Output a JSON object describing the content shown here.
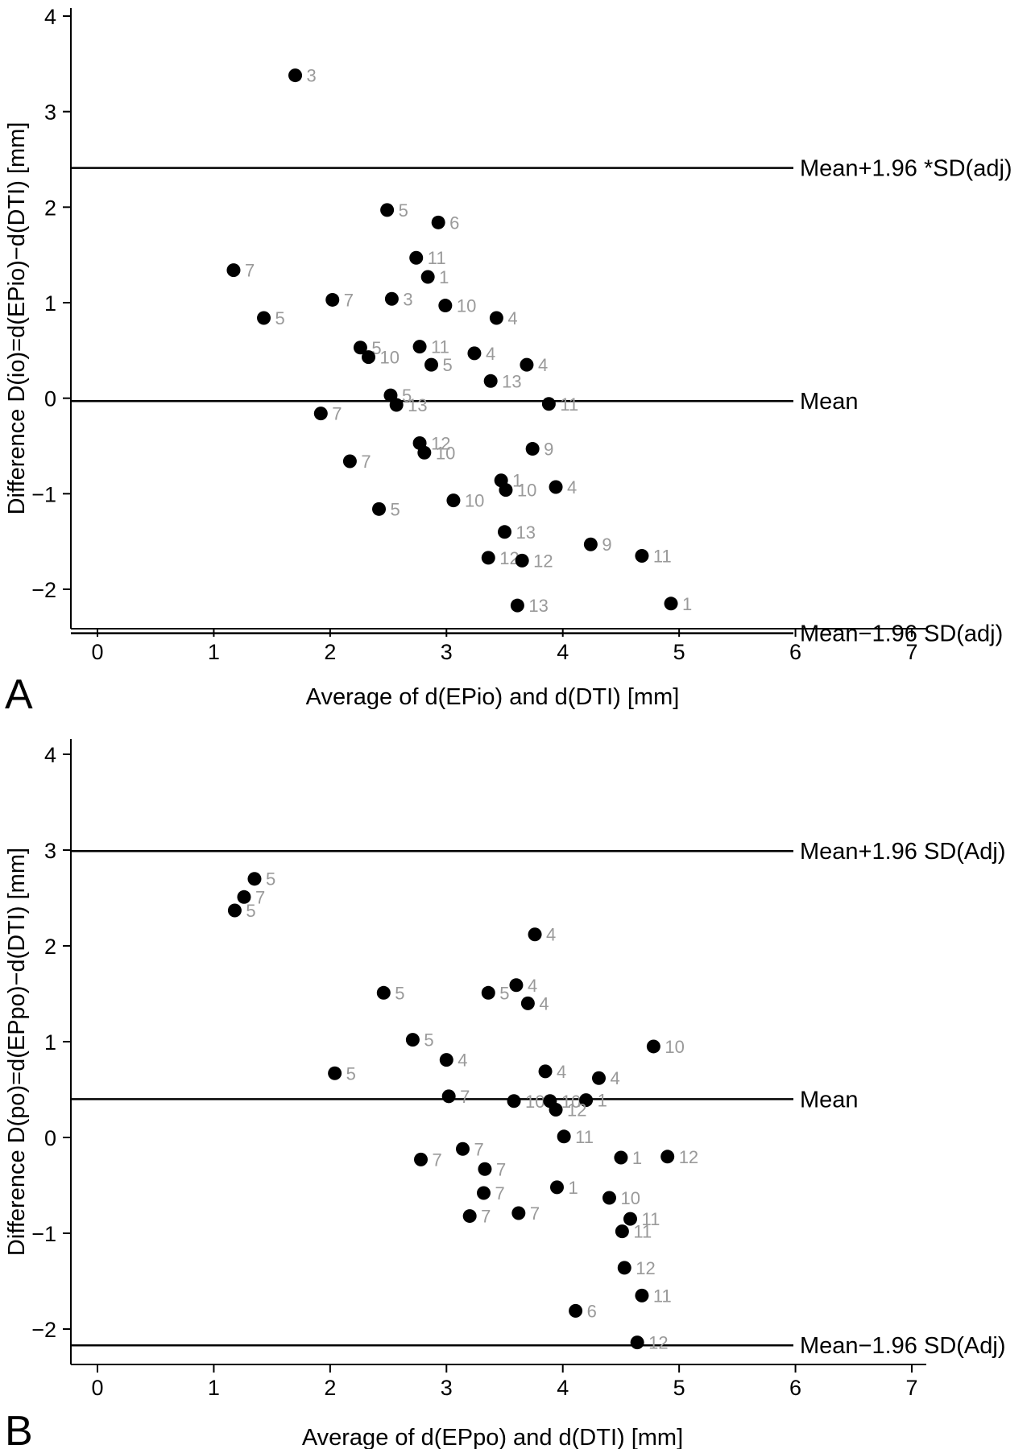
{
  "colors": {
    "points": "#000000",
    "point_labels": "#9a9a9a",
    "lines": "#000000"
  },
  "chart_data": [
    {
      "type": "scatter",
      "panel_label": "A",
      "title": "",
      "xlabel": "Average of d(EPio) and d(DTI) [mm]",
      "ylabel": "Difference D(io)=d(EPio)−d(DTI) [mm]",
      "xlim": [
        -0.2,
        7.1
      ],
      "ylim": [
        -2.65,
        4.15
      ],
      "xticks": [
        0,
        1,
        2,
        3,
        4,
        5,
        6,
        7
      ],
      "yticks": [
        -2,
        -1,
        0,
        1,
        2,
        3,
        4
      ],
      "grid": false,
      "reference_lines": [
        {
          "y": 2.41,
          "label": "Mean+1.96 *SD(adj)"
        },
        {
          "y": -0.03,
          "label": "Mean"
        },
        {
          "y": -2.46,
          "label": "Mean−1.96 SD(adj)"
        }
      ],
      "points": [
        {
          "x": 1.7,
          "y": 3.38,
          "label": "3"
        },
        {
          "x": 2.49,
          "y": 1.97,
          "label": "5"
        },
        {
          "x": 2.93,
          "y": 1.84,
          "label": "6"
        },
        {
          "x": 2.74,
          "y": 1.47,
          "label": "11"
        },
        {
          "x": 1.17,
          "y": 1.34,
          "label": "7"
        },
        {
          "x": 2.84,
          "y": 1.27,
          "label": "1"
        },
        {
          "x": 2.02,
          "y": 1.03,
          "label": "7"
        },
        {
          "x": 2.53,
          "y": 1.04,
          "label": "3"
        },
        {
          "x": 2.99,
          "y": 0.97,
          "label": "10"
        },
        {
          "x": 1.43,
          "y": 0.84,
          "label": "5"
        },
        {
          "x": 3.43,
          "y": 0.84,
          "label": "4"
        },
        {
          "x": 2.26,
          "y": 0.53,
          "label": "5"
        },
        {
          "x": 2.33,
          "y": 0.43,
          "label": "10"
        },
        {
          "x": 2.77,
          "y": 0.54,
          "label": "11"
        },
        {
          "x": 3.24,
          "y": 0.47,
          "label": "4"
        },
        {
          "x": 2.87,
          "y": 0.35,
          "label": "5"
        },
        {
          "x": 3.69,
          "y": 0.35,
          "label": "4"
        },
        {
          "x": 3.38,
          "y": 0.18,
          "label": "13"
        },
        {
          "x": 2.52,
          "y": 0.03,
          "label": "5"
        },
        {
          "x": 2.57,
          "y": -0.07,
          "label": "13"
        },
        {
          "x": 3.88,
          "y": -0.06,
          "label": "11"
        },
        {
          "x": 1.92,
          "y": -0.16,
          "label": "7"
        },
        {
          "x": 2.77,
          "y": -0.47,
          "label": "12"
        },
        {
          "x": 2.81,
          "y": -0.57,
          "label": "10"
        },
        {
          "x": 3.74,
          "y": -0.53,
          "label": "9"
        },
        {
          "x": 2.17,
          "y": -0.66,
          "label": "7"
        },
        {
          "x": 3.47,
          "y": -0.86,
          "label": "1"
        },
        {
          "x": 3.51,
          "y": -0.96,
          "label": "10"
        },
        {
          "x": 3.94,
          "y": -0.93,
          "label": "4"
        },
        {
          "x": 3.06,
          "y": -1.07,
          "label": "10"
        },
        {
          "x": 2.42,
          "y": -1.16,
          "label": "5"
        },
        {
          "x": 3.5,
          "y": -1.4,
          "label": "13"
        },
        {
          "x": 4.24,
          "y": -1.53,
          "label": "9"
        },
        {
          "x": 4.68,
          "y": -1.65,
          "label": "11"
        },
        {
          "x": 3.36,
          "y": -1.67,
          "label": "12"
        },
        {
          "x": 3.65,
          "y": -1.7,
          "label": "12"
        },
        {
          "x": 3.61,
          "y": -2.17,
          "label": "13"
        },
        {
          "x": 4.93,
          "y": -2.15,
          "label": "1"
        }
      ]
    },
    {
      "type": "scatter",
      "panel_label": "B",
      "title": "",
      "xlabel": "Average of d(EPpo) and d(DTI) [mm]",
      "ylabel": "Difference D(po)=d(EPpo)−d(DTI) [mm]",
      "xlim": [
        -0.2,
        7.1
      ],
      "ylim": [
        -2.37,
        4.15
      ],
      "xticks": [
        0,
        1,
        2,
        3,
        4,
        5,
        6,
        7
      ],
      "yticks": [
        -2,
        -1,
        0,
        1,
        2,
        3,
        4
      ],
      "grid": false,
      "reference_lines": [
        {
          "y": 2.99,
          "label": "Mean+1.96 SD(Adj)"
        },
        {
          "y": 0.4,
          "label": "Mean"
        },
        {
          "y": -2.17,
          "label": "Mean−1.96 SD(Adj)"
        }
      ],
      "points": [
        {
          "x": 1.35,
          "y": 2.7,
          "label": "5"
        },
        {
          "x": 1.26,
          "y": 2.51,
          "label": "7"
        },
        {
          "x": 1.18,
          "y": 2.37,
          "label": "5"
        },
        {
          "x": 3.76,
          "y": 2.12,
          "label": "4"
        },
        {
          "x": 3.6,
          "y": 1.59,
          "label": "4"
        },
        {
          "x": 2.46,
          "y": 1.51,
          "label": "5"
        },
        {
          "x": 3.36,
          "y": 1.51,
          "label": "5"
        },
        {
          "x": 3.7,
          "y": 1.4,
          "label": "4"
        },
        {
          "x": 2.71,
          "y": 1.02,
          "label": "5"
        },
        {
          "x": 4.78,
          "y": 0.95,
          "label": "10"
        },
        {
          "x": 3.0,
          "y": 0.81,
          "label": "4"
        },
        {
          "x": 2.04,
          "y": 0.67,
          "label": "5"
        },
        {
          "x": 3.85,
          "y": 0.69,
          "label": "4"
        },
        {
          "x": 4.31,
          "y": 0.62,
          "label": "4"
        },
        {
          "x": 3.02,
          "y": 0.43,
          "label": "7"
        },
        {
          "x": 3.58,
          "y": 0.38,
          "label": "10"
        },
        {
          "x": 3.89,
          "y": 0.38,
          "label": "10"
        },
        {
          "x": 4.2,
          "y": 0.39,
          "label": "1"
        },
        {
          "x": 3.94,
          "y": 0.29,
          "label": "12"
        },
        {
          "x": 4.01,
          "y": 0.01,
          "label": "11"
        },
        {
          "x": 3.14,
          "y": -0.12,
          "label": "7"
        },
        {
          "x": 2.78,
          "y": -0.23,
          "label": "7"
        },
        {
          "x": 4.5,
          "y": -0.21,
          "label": "1"
        },
        {
          "x": 4.9,
          "y": -0.2,
          "label": "12"
        },
        {
          "x": 3.33,
          "y": -0.33,
          "label": "7"
        },
        {
          "x": 3.95,
          "y": -0.52,
          "label": "1"
        },
        {
          "x": 3.32,
          "y": -0.58,
          "label": "7"
        },
        {
          "x": 4.4,
          "y": -0.63,
          "label": "10"
        },
        {
          "x": 3.2,
          "y": -0.82,
          "label": "7"
        },
        {
          "x": 3.62,
          "y": -0.79,
          "label": "7"
        },
        {
          "x": 4.58,
          "y": -0.85,
          "label": "11"
        },
        {
          "x": 4.51,
          "y": -0.98,
          "label": "11"
        },
        {
          "x": 4.53,
          "y": -1.36,
          "label": "12"
        },
        {
          "x": 4.68,
          "y": -1.65,
          "label": "11"
        },
        {
          "x": 4.11,
          "y": -1.81,
          "label": "6"
        },
        {
          "x": 4.64,
          "y": -2.14,
          "label": "12"
        }
      ]
    }
  ]
}
